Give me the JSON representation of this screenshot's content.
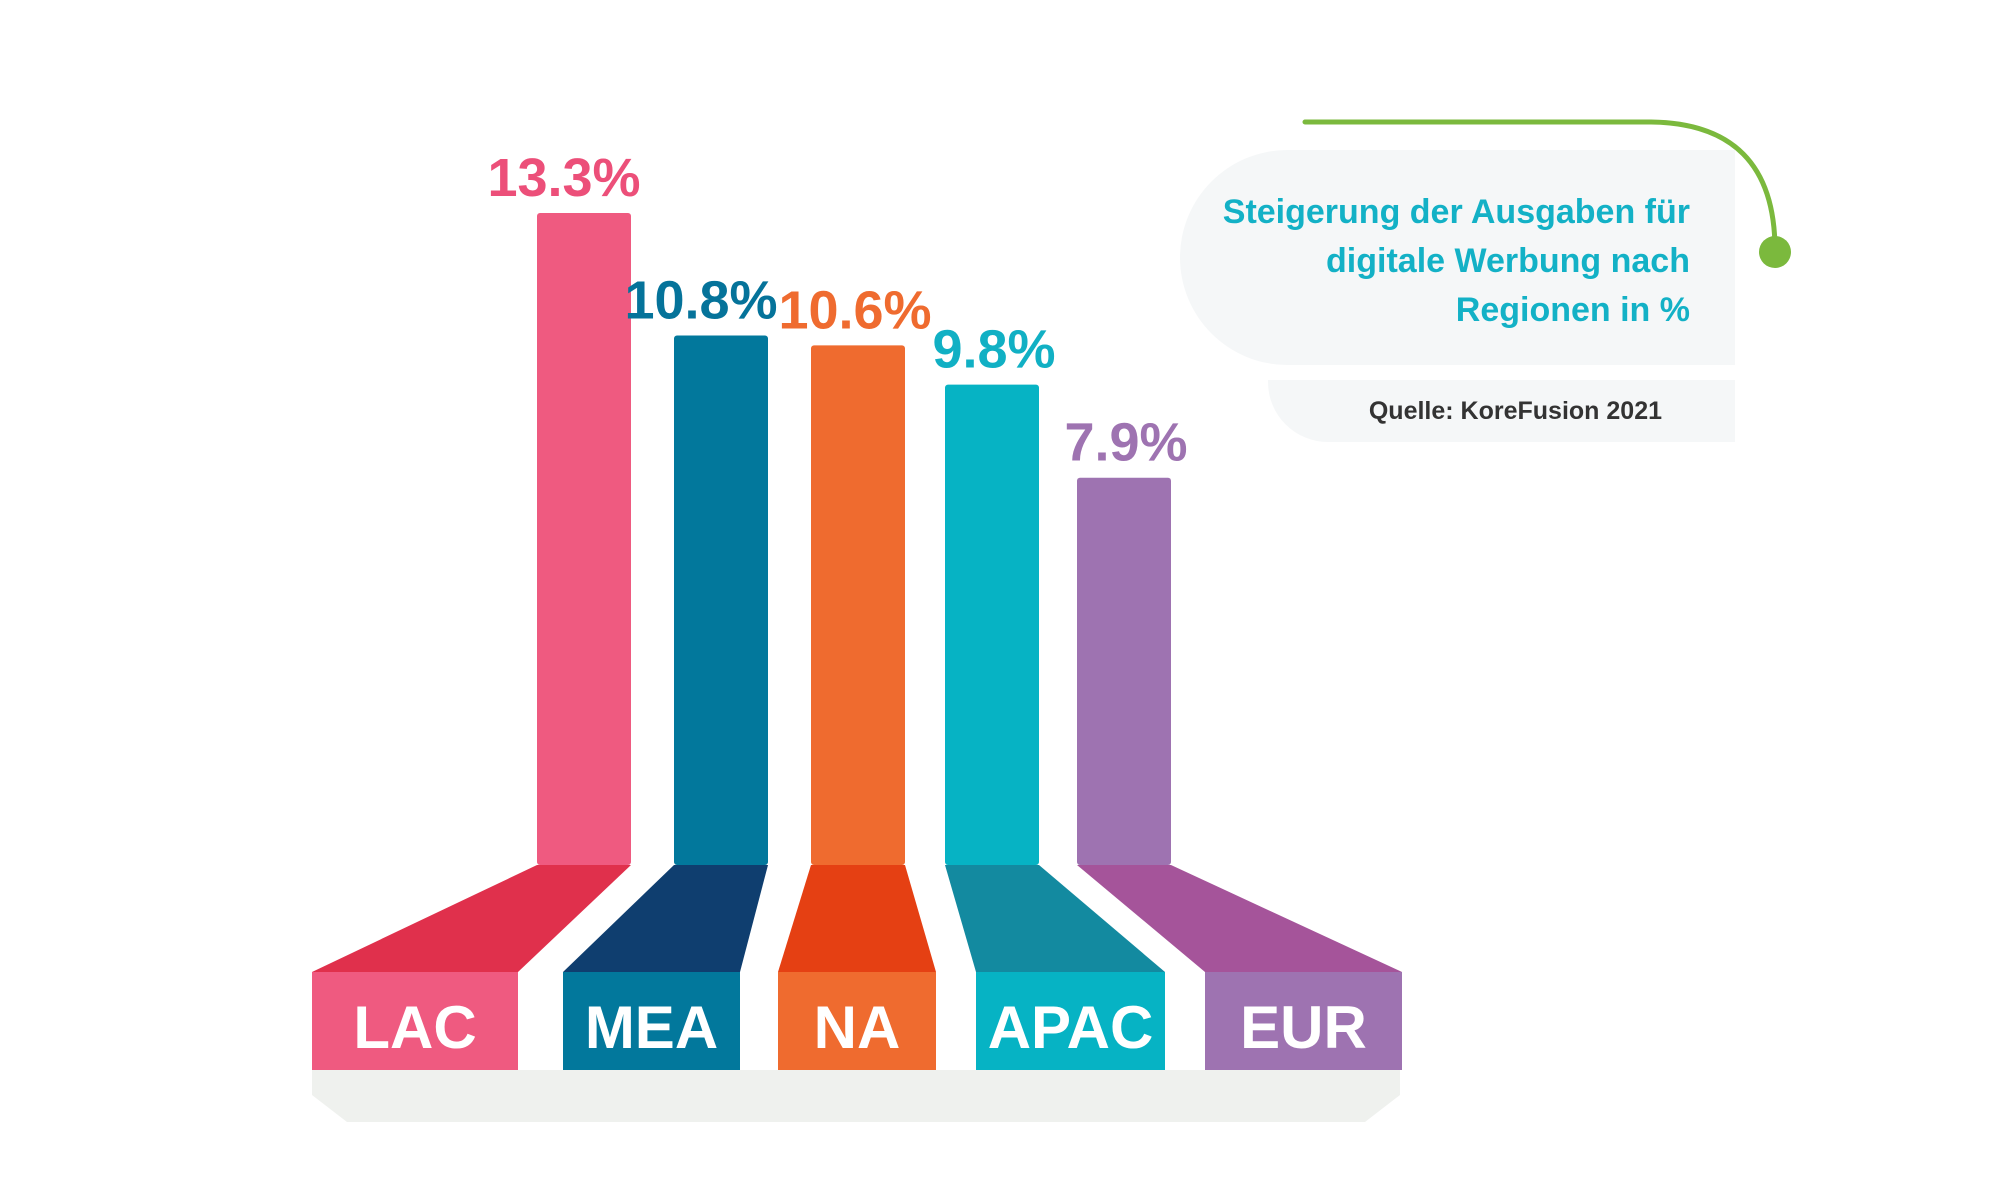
{
  "chart_data": {
    "type": "bar",
    "categories": [
      "LAC",
      "MEA",
      "NA",
      "APAC",
      "EUR"
    ],
    "values": [
      13.3,
      10.8,
      10.6,
      9.8,
      7.9
    ],
    "value_labels": [
      "13.3%",
      "10.8%",
      "10.6%",
      "9.8%",
      "7.9%"
    ],
    "title": "Steigerung der Ausgaben für digitale Werbung nach Regionen in %",
    "source": "Quelle: KoreFusion 2021",
    "legend": "none",
    "grid": false
  },
  "colors": {
    "bars": [
      "#ef5a80",
      "#02789c",
      "#ef6b2f",
      "#06b3c4",
      "#9e73b1"
    ],
    "ramps": [
      "#e0304c",
      "#0f3e6f",
      "#e54013",
      "#138aa0",
      "#a5549a"
    ],
    "value_labels": [
      "#ec4f79",
      "#05739a",
      "#ef6b2f",
      "#11b0c4",
      "#9e73b1"
    ],
    "title": "#13b1c6",
    "connector": "#7bb93d",
    "card": "#f5f7f8",
    "floor": "#eff1ee"
  }
}
